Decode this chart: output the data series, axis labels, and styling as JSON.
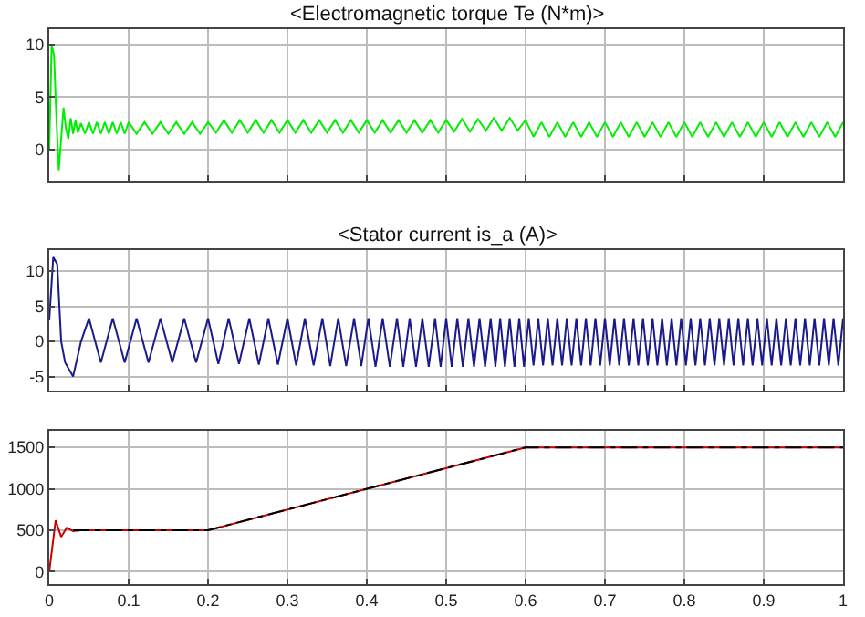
{
  "chart_data": [
    {
      "type": "line",
      "title": "<Electromagnetic torque Te (N*m)>",
      "xlim": [
        0,
        1
      ],
      "xticks": [
        0,
        0.1,
        0.2,
        0.3,
        0.4,
        0.5,
        0.6,
        0.7,
        0.8,
        0.9,
        1
      ],
      "ylim": [
        -3,
        11.5
      ],
      "yticks": [
        0,
        5,
        10
      ],
      "grid": true,
      "marker": "none",
      "tick_labels": "y",
      "series": [
        {
          "color": "#00ee00",
          "x": [
            0,
            0.003,
            0.006,
            0.009,
            0.012,
            0.015,
            0.018,
            0.021,
            0.024,
            0.027,
            0.03,
            0.033,
            0.036,
            0.04,
            0.045,
            0.05,
            0.055,
            0.06,
            0.065,
            0.07,
            0.075,
            0.08,
            0.085,
            0.09,
            0.095,
            0.1,
            0.11,
            0.12,
            0.13,
            0.14,
            0.15,
            0.16,
            0.17,
            0.18,
            0.19,
            0.2,
            0.21,
            0.22,
            0.23,
            0.24,
            0.25,
            0.26,
            0.27,
            0.28,
            0.29,
            0.3,
            0.31,
            0.32,
            0.33,
            0.34,
            0.35,
            0.36,
            0.37,
            0.38,
            0.39,
            0.4,
            0.41,
            0.42,
            0.43,
            0.44,
            0.45,
            0.46,
            0.47,
            0.48,
            0.49,
            0.5,
            0.51,
            0.52,
            0.53,
            0.54,
            0.55,
            0.56,
            0.57,
            0.58,
            0.59,
            0.6,
            0.61,
            0.62,
            0.63,
            0.64,
            0.65,
            0.66,
            0.67,
            0.68,
            0.69,
            0.7,
            0.71,
            0.72,
            0.73,
            0.74,
            0.75,
            0.76,
            0.77,
            0.78,
            0.79,
            0.8,
            0.81,
            0.82,
            0.83,
            0.84,
            0.85,
            0.86,
            0.87,
            0.88,
            0.89,
            0.9,
            0.91,
            0.92,
            0.93,
            0.94,
            0.95,
            0.96,
            0.97,
            0.98,
            0.99,
            1
          ],
          "values": [
            0,
            10,
            9,
            3,
            -2,
            1,
            4,
            2,
            1,
            3,
            1.5,
            2.8,
            1.6,
            2.5,
            1.5,
            2.6,
            1.5,
            2.6,
            1.5,
            2.6,
            1.5,
            2.6,
            1.5,
            2.6,
            1.5,
            2.6,
            1.5,
            2.6,
            1.5,
            2.6,
            1.5,
            2.6,
            1.5,
            2.6,
            1.5,
            2.6,
            1.6,
            2.8,
            1.6,
            2.8,
            1.6,
            2.8,
            1.6,
            2.8,
            1.6,
            2.8,
            1.6,
            2.8,
            1.6,
            2.8,
            1.6,
            2.8,
            1.6,
            2.8,
            1.6,
            2.8,
            1.6,
            2.8,
            1.6,
            2.8,
            1.6,
            2.8,
            1.6,
            2.8,
            1.6,
            2.8,
            1.7,
            2.9,
            1.7,
            2.9,
            1.8,
            3,
            1.8,
            3,
            1.8,
            2.8,
            1.2,
            2.6,
            1.2,
            2.6,
            1.2,
            2.6,
            1.2,
            2.6,
            1.2,
            2.6,
            1.2,
            2.6,
            1.2,
            2.6,
            1.2,
            2.6,
            1.2,
            2.6,
            1.2,
            2.6,
            1.2,
            2.6,
            1.2,
            2.6,
            1.2,
            2.6,
            1.2,
            2.6,
            1.2,
            2.6,
            1.2,
            2.6,
            1.2,
            2.6,
            1.2,
            2.6,
            1.2,
            2.6,
            1.2,
            2.6
          ]
        }
      ]
    },
    {
      "type": "line",
      "title": "<Stator current is_a (A)>",
      "xlim": [
        0,
        1
      ],
      "xticks": [
        0,
        0.1,
        0.2,
        0.3,
        0.4,
        0.5,
        0.6,
        0.7,
        0.8,
        0.9,
        1
      ],
      "ylim": [
        -7,
        13
      ],
      "yticks": [
        -5,
        0,
        5,
        10
      ],
      "grid": true,
      "marker": "none",
      "tick_labels": "y",
      "series": [
        {
          "color": "#1a1a8c",
          "x": [
            0,
            0.005,
            0.01,
            0.015,
            0.02,
            0.03,
            0.04,
            0.05,
            0.065,
            0.08,
            0.095,
            0.11,
            0.125,
            0.14,
            0.155,
            0.17,
            0.185,
            0.2,
            0.213,
            0.226,
            0.239,
            0.252,
            0.264,
            0.276,
            0.288,
            0.3,
            0.311,
            0.322,
            0.333,
            0.344,
            0.354,
            0.364,
            0.374,
            0.384,
            0.393,
            0.402,
            0.411,
            0.42,
            0.429,
            0.438,
            0.446,
            0.454,
            0.462,
            0.47,
            0.478,
            0.486,
            0.493,
            0.5,
            0.507,
            0.514,
            0.521,
            0.528,
            0.535,
            0.542,
            0.549,
            0.556,
            0.562,
            0.568,
            0.574,
            0.58,
            0.586,
            0.592,
            0.598,
            0.604,
            0.61,
            0.616,
            0.622,
            0.628,
            0.634,
            0.64,
            0.646,
            0.652,
            0.658,
            0.664,
            0.67,
            0.676,
            0.682,
            0.688,
            0.694,
            0.7,
            0.706,
            0.712,
            0.718,
            0.724,
            0.73,
            0.736,
            0.742,
            0.748,
            0.754,
            0.76,
            0.766,
            0.772,
            0.778,
            0.784,
            0.79,
            0.796,
            0.802,
            0.808,
            0.814,
            0.82,
            0.826,
            0.832,
            0.838,
            0.844,
            0.85,
            0.856,
            0.862,
            0.868,
            0.874,
            0.88,
            0.886,
            0.892,
            0.898,
            0.904,
            0.91,
            0.916,
            0.922,
            0.928,
            0.934,
            0.94,
            0.946,
            0.952,
            0.958,
            0.964,
            0.97,
            0.976,
            0.982,
            0.988,
            0.994,
            1
          ],
          "values": [
            3,
            12,
            11,
            0,
            -3,
            -5,
            0,
            3.3,
            -3,
            3.3,
            -3,
            3.3,
            -3,
            3.3,
            -3,
            3.3,
            -3,
            3.3,
            -3.2,
            3.3,
            -3.2,
            3.3,
            -3.3,
            3.3,
            -3.3,
            3.3,
            -3.4,
            3.3,
            -3.4,
            3.3,
            -3.5,
            3.3,
            -3.5,
            3.3,
            -3.5,
            3.3,
            -3.6,
            3.3,
            -3.6,
            3.3,
            -3.6,
            3.3,
            -3.6,
            3.3,
            -3.6,
            3.3,
            -3.6,
            3.3,
            -3.6,
            3.3,
            -3.6,
            3.3,
            -3.6,
            3.3,
            -3.6,
            3.3,
            -3.6,
            3.3,
            -3.6,
            3.3,
            -3.6,
            3.3,
            -3.6,
            3.3,
            -3.4,
            3.3,
            -3.4,
            3.3,
            -3.4,
            3.3,
            -3.4,
            3.3,
            -3.4,
            3.3,
            -3.4,
            3.3,
            -3.4,
            3.3,
            -3.4,
            3.3,
            -3.4,
            3.3,
            -3.4,
            3.3,
            -3.4,
            3.3,
            -3.4,
            3.3,
            -3.4,
            3.3,
            -3.4,
            3.3,
            -3.4,
            3.3,
            -3.4,
            3.3,
            -3.4,
            3.3,
            -3.4,
            3.3,
            -3.4,
            3.3,
            -3.4,
            3.3,
            -3.4,
            3.3,
            -3.4,
            3.3,
            -3.4,
            3.3,
            -3.4,
            3.3,
            -3.4,
            3.3,
            -3.4,
            3.3,
            -3.4,
            3.3,
            -3.4,
            3.3,
            -3.4,
            3.3,
            -3.4,
            3.3,
            -3.4,
            3.3,
            -3.4,
            3.3,
            -3.4,
            3.3
          ]
        }
      ]
    },
    {
      "type": "line",
      "xlim": [
        0,
        1
      ],
      "xticks": [
        0,
        0.1,
        0.2,
        0.3,
        0.4,
        0.5,
        0.6,
        0.7,
        0.8,
        0.9,
        1
      ],
      "ylim": [
        -150,
        1700
      ],
      "yticks": [
        0,
        500,
        1000,
        1500
      ],
      "grid": true,
      "marker": "none",
      "series": [
        {
          "color": "#cc0000",
          "line_style": "solid",
          "x": [
            0,
            0.008,
            0.015,
            0.022,
            0.03,
            0.04,
            0.2,
            0.6,
            1
          ],
          "values": [
            0,
            620,
            420,
            530,
            490,
            500,
            500,
            1500,
            1500
          ]
        },
        {
          "color": "#000000",
          "line_style": "dashed",
          "x": [
            0.03,
            0.2,
            0.6,
            1
          ],
          "values": [
            500,
            500,
            1500,
            1500
          ]
        }
      ]
    }
  ]
}
